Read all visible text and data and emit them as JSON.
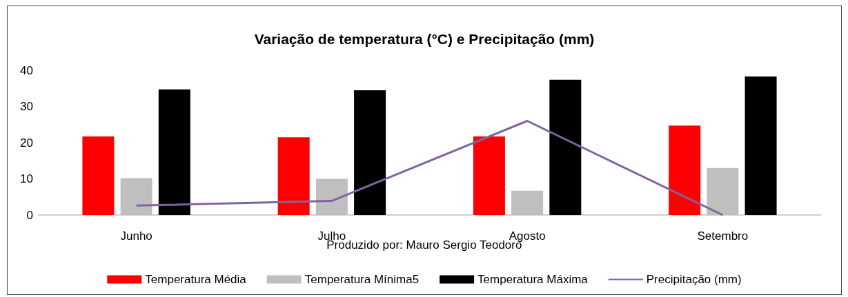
{
  "chart_data": {
    "type": "bar",
    "title": "Variação de temperatura (°C) e Precipitação (mm)",
    "categories": [
      "Junho",
      "Julho",
      "Agosto",
      "Setembro"
    ],
    "series": [
      {
        "name": "Temperatura Média",
        "color": "#ff0000",
        "values": [
          21.7,
          21.5,
          21.7,
          24.7
        ]
      },
      {
        "name": "Temperatura Mínima5",
        "color": "#bfbfbf",
        "values": [
          10.2,
          10,
          6.7,
          13
        ]
      },
      {
        "name": "Temperatura Máxima",
        "color": "#000000",
        "values": [
          34.7,
          34.5,
          37.4,
          38.3
        ]
      },
      {
        "name": "Precipitação (mm)",
        "type": "line",
        "color": "#8064a2",
        "values": [
          2.6,
          3.9,
          26,
          0
        ]
      }
    ],
    "ylim": [
      0,
      40
    ],
    "yticks": [
      0,
      10,
      20,
      30,
      40
    ],
    "grid": false,
    "legend": "bottom",
    "marker": "none",
    "annotations": [
      "Produzido por: Mauro Sergio Teodoro"
    ]
  }
}
